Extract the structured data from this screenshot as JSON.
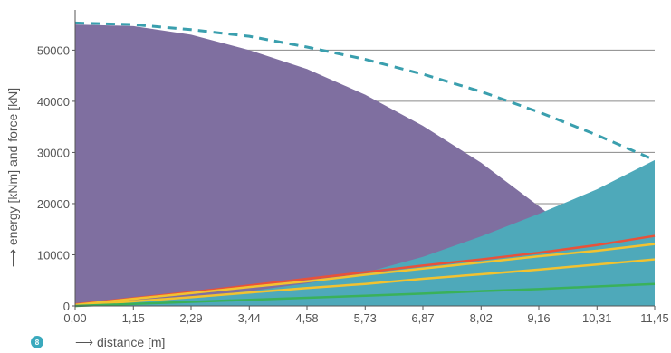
{
  "chart_data": {
    "type": "area",
    "x": [
      0,
      1.15,
      2.29,
      3.44,
      4.58,
      5.73,
      6.87,
      8.02,
      9.16,
      10.31,
      11.45
    ],
    "x_tick_labels": [
      "0,00",
      "1,15",
      "2,29",
      "3,44",
      "4,58",
      "5,73",
      "6,87",
      "8,02",
      "9,16",
      "10,31",
      "11,45"
    ],
    "y_ticks": [
      0,
      10000,
      20000,
      30000,
      40000,
      50000
    ],
    "y_tick_labels": [
      "0",
      "10000",
      "20000",
      "30000",
      "40000",
      "50000"
    ],
    "xlim": [
      0,
      11.45
    ],
    "ylim": [
      0,
      57500
    ],
    "xlabel": "⟶ distance [m]",
    "ylabel": "⟶ energy [kNm] and force [kN]",
    "grid": "horizontal",
    "series": [
      {
        "type": "area",
        "color": "#7f6fa0",
        "values": [
          55000,
          54700,
          53000,
          50000,
          46300,
          41300,
          35200,
          28000,
          19500,
          10500,
          0
        ]
      },
      {
        "type": "area",
        "color": "#4ea9ba",
        "values": [
          0,
          900,
          1700,
          2900,
          4400,
          6500,
          9600,
          13600,
          18000,
          22800,
          28500
        ]
      },
      {
        "type": "dashed-line",
        "color": "#3a9fae",
        "values": [
          55300,
          55000,
          54000,
          52700,
          50600,
          48200,
          45300,
          41900,
          37900,
          33400,
          28500
        ]
      },
      {
        "type": "line",
        "color": "#e8523a",
        "values": [
          300,
          1500,
          2700,
          4000,
          5300,
          6600,
          7900,
          9100,
          10400,
          11900,
          13700
        ]
      },
      {
        "type": "line",
        "color": "#f2c230",
        "values": [
          200,
          1400,
          2500,
          3700,
          4800,
          6100,
          7300,
          8500,
          9700,
          10800,
          12100
        ]
      },
      {
        "type": "line",
        "color": "#f2c230",
        "values": [
          0,
          900,
          1700,
          2600,
          3500,
          4300,
          5300,
          6200,
          7100,
          8100,
          9100
        ]
      },
      {
        "type": "line",
        "color": "#3ab15a",
        "values": [
          0,
          400,
          800,
          1200,
          1600,
          2000,
          2400,
          2900,
          3300,
          3800,
          4300
        ]
      }
    ],
    "badge": "8"
  }
}
